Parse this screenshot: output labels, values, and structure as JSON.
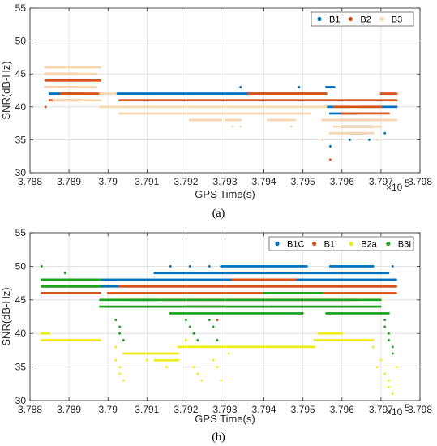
{
  "chart_data": [
    {
      "type": "scatter",
      "panel_label": "(a)",
      "xlabel": "GPS Time(s)",
      "ylabel": "SNR(dB-Hz)",
      "x_exponent_label": "×10",
      "x_exponent_power": "5",
      "xlim": [
        3.788,
        3.798
      ],
      "ylim": [
        30,
        55
      ],
      "xticks": [
        "3.788",
        "3.789",
        "3.79",
        "3.791",
        "3.792",
        "3.793",
        "3.794",
        "3.795",
        "3.796",
        "3.797",
        "3.798"
      ],
      "yticks": [
        "30",
        "35",
        "40",
        "45",
        "50",
        "55"
      ],
      "grid": true,
      "legend_position": "top-right",
      "series": [
        {
          "name": "B1",
          "color": "#0072BD",
          "segments": [
            {
              "x": [
                3.7884,
                3.7888
              ],
              "y": 43
            },
            {
              "x": [
                3.7885,
                3.7891
              ],
              "y": 42
            },
            {
              "x": [
                3.789,
                3.7894
              ],
              "y": 42
            },
            {
              "x": [
                3.789,
                3.7892
              ],
              "y": 43
            },
            {
              "x": [
                3.7902,
                3.7956
              ],
              "y": 42
            },
            {
              "x": [
                3.7956,
                3.7958
              ],
              "y": 43
            },
            {
              "x": [
                3.7956,
                3.7962
              ],
              "y": 40
            },
            {
              "x": [
                3.7957,
                3.7964
              ],
              "y": 39
            },
            {
              "x": [
                3.7959,
                3.7968
              ],
              "y": 38
            },
            {
              "x": [
                3.796,
                3.7968
              ],
              "y": 37
            },
            {
              "x": [
                3.7962,
                3.7966
              ],
              "y": 36
            },
            {
              "x": [
                3.7965,
                3.7974
              ],
              "y": 40
            }
          ],
          "points": [
            {
              "x": 3.7957,
              "y": 34
            },
            {
              "x": 3.7962,
              "y": 35
            },
            {
              "x": 3.7967,
              "y": 35
            },
            {
              "x": 3.7969,
              "y": 38
            },
            {
              "x": 3.7971,
              "y": 36
            },
            {
              "x": 3.7934,
              "y": 43
            },
            {
              "x": 3.7949,
              "y": 43
            }
          ]
        },
        {
          "name": "B2",
          "color": "#D95319",
          "segments": [
            {
              "x": [
                3.7884,
                3.7898
              ],
              "y": 44
            },
            {
              "x": [
                3.7884,
                3.7892
              ],
              "y": 45
            },
            {
              "x": [
                3.7884,
                3.7891
              ],
              "y": 43
            },
            {
              "x": [
                3.7885,
                3.7893
              ],
              "y": 41
            },
            {
              "x": [
                3.7888,
                3.7898
              ],
              "y": 42
            },
            {
              "x": [
                3.7903,
                3.7956
              ],
              "y": 41
            },
            {
              "x": [
                3.7936,
                3.7956
              ],
              "y": 42
            },
            {
              "x": [
                3.7956,
                3.7962
              ],
              "y": 41
            },
            {
              "x": [
                3.7958,
                3.797
              ],
              "y": 40
            },
            {
              "x": [
                3.796,
                3.7972
              ],
              "y": 39
            },
            {
              "x": [
                3.7962,
                3.7974
              ],
              "y": 41
            },
            {
              "x": [
                3.797,
                3.7974
              ],
              "y": 42
            }
          ],
          "points": [
            {
              "x": 3.7884,
              "y": 40
            },
            {
              "x": 3.7957,
              "y": 36
            },
            {
              "x": 3.7957,
              "y": 32
            }
          ]
        },
        {
          "name": "B3",
          "color": "#F7D7AF",
          "segments": [
            {
              "x": [
                3.7884,
                3.7898
              ],
              "y": 46
            },
            {
              "x": [
                3.7884,
                3.7897
              ],
              "y": 45
            },
            {
              "x": [
                3.7884,
                3.7897
              ],
              "y": 43
            },
            {
              "x": [
                3.7886,
                3.7898
              ],
              "y": 41
            },
            {
              "x": [
                3.7898,
                3.7902
              ],
              "y": 42
            },
            {
              "x": [
                3.7898,
                3.7905
              ],
              "y": 40
            },
            {
              "x": [
                3.7903,
                3.7952
              ],
              "y": 39
            },
            {
              "x": [
                3.7904,
                3.7956
              ],
              "y": 40
            },
            {
              "x": [
                3.7921,
                3.7929
              ],
              "y": 38
            },
            {
              "x": [
                3.793,
                3.7934
              ],
              "y": 38
            },
            {
              "x": [
                3.7941,
                3.7948
              ],
              "y": 38
            },
            {
              "x": [
                3.7955,
                3.7974
              ],
              "y": 38
            },
            {
              "x": [
                3.7958,
                3.797
              ],
              "y": 37
            },
            {
              "x": [
                3.7957,
                3.7968
              ],
              "y": 36
            }
          ],
          "points": [
            {
              "x": 3.7932,
              "y": 37
            },
            {
              "x": 3.7934,
              "y": 37
            },
            {
              "x": 3.7947,
              "y": 37
            },
            {
              "x": 3.7955,
              "y": 35
            },
            {
              "x": 3.7969,
              "y": 35
            }
          ]
        }
      ]
    },
    {
      "type": "scatter",
      "panel_label": "(b)",
      "xlabel": "GPS Time(s)",
      "ylabel": "SNR(dB-Hz)",
      "x_exponent_label": "×10",
      "x_exponent_power": "5",
      "xlim": [
        3.788,
        3.798
      ],
      "ylim": [
        30,
        55
      ],
      "xticks": [
        "3.788",
        "3.789",
        "3.79",
        "3.791",
        "3.792",
        "3.793",
        "3.794",
        "3.795",
        "3.796",
        "3.797",
        "3.798"
      ],
      "yticks": [
        "30",
        "35",
        "40",
        "45",
        "50",
        "55"
      ],
      "grid": true,
      "legend_position": "top-right",
      "series": [
        {
          "name": "B1C",
          "color": "#0072BD",
          "segments": [
            {
              "x": [
                3.7883,
                3.7897
              ],
              "y": 48
            },
            {
              "x": [
                3.7883,
                3.7899
              ],
              "y": 47
            },
            {
              "x": [
                3.7883,
                3.7898
              ],
              "y": 46
            },
            {
              "x": [
                3.7898,
                3.7974
              ],
              "y": 48
            },
            {
              "x": [
                3.7898,
                3.7974
              ],
              "y": 47
            },
            {
              "x": [
                3.7912,
                3.7972
              ],
              "y": 49
            },
            {
              "x": [
                3.7929,
                3.7951
              ],
              "y": 50
            },
            {
              "x": [
                3.7957,
                3.7968
              ],
              "y": 50
            }
          ],
          "points": [
            {
              "x": 3.7916,
              "y": 50
            },
            {
              "x": 3.7921,
              "y": 50
            },
            {
              "x": 3.7926,
              "y": 50
            },
            {
              "x": 3.7973,
              "y": 50
            }
          ]
        },
        {
          "name": "B1I",
          "color": "#D95319",
          "segments": [
            {
              "x": [
                3.7883,
                3.7897
              ],
              "y": 47
            },
            {
              "x": [
                3.7883,
                3.7898
              ],
              "y": 46
            },
            {
              "x": [
                3.79,
                3.7974
              ],
              "y": 46
            },
            {
              "x": [
                3.7903,
                3.7974
              ],
              "y": 47
            },
            {
              "x": [
                3.7914,
                3.7964
              ],
              "y": 45
            },
            {
              "x": [
                3.792,
                3.793
              ],
              "y": 44
            },
            {
              "x": [
                3.7932,
                3.7948
              ],
              "y": 48
            }
          ],
          "points": [
            {
              "x": 3.7926,
              "y": 43
            },
            {
              "x": 3.7928,
              "y": 42
            },
            {
              "x": 3.7942,
              "y": 44
            }
          ]
        },
        {
          "name": "B2a",
          "color": "#EDED1C",
          "segments": [
            {
              "x": [
                3.7883,
                3.7898
              ],
              "y": 39
            },
            {
              "x": [
                3.7883,
                3.7885
              ],
              "y": 40
            },
            {
              "x": [
                3.7904,
                3.7918
              ],
              "y": 37
            },
            {
              "x": [
                3.7924,
                3.7953
              ],
              "y": 38
            },
            {
              "x": [
                3.7953,
                3.7968
              ],
              "y": 39
            },
            {
              "x": [
                3.7954,
                3.796
              ],
              "y": 40
            },
            {
              "x": [
                3.7918,
                3.7925
              ],
              "y": 38
            },
            {
              "x": [
                3.7912,
                3.7918
              ],
              "y": 36
            }
          ],
          "points": [
            {
              "x": 3.7902,
              "y": 38
            },
            {
              "x": 3.7902,
              "y": 36
            },
            {
              "x": 3.7903,
              "y": 35
            },
            {
              "x": 3.7903,
              "y": 34
            },
            {
              "x": 3.7904,
              "y": 33
            },
            {
              "x": 3.792,
              "y": 39
            },
            {
              "x": 3.7922,
              "y": 35
            },
            {
              "x": 3.7923,
              "y": 34
            },
            {
              "x": 3.7924,
              "y": 33
            },
            {
              "x": 3.7927,
              "y": 36
            },
            {
              "x": 3.7928,
              "y": 35
            },
            {
              "x": 3.7929,
              "y": 33
            },
            {
              "x": 3.791,
              "y": 36
            },
            {
              "x": 3.7915,
              "y": 35
            },
            {
              "x": 3.7931,
              "y": 37
            },
            {
              "x": 3.797,
              "y": 36
            },
            {
              "x": 3.7971,
              "y": 34
            },
            {
              "x": 3.7972,
              "y": 33
            },
            {
              "x": 3.7972,
              "y": 32
            },
            {
              "x": 3.7973,
              "y": 31
            },
            {
              "x": 3.7974,
              "y": 35
            },
            {
              "x": 3.7968,
              "y": 38
            },
            {
              "x": 3.7969,
              "y": 35
            }
          ]
        },
        {
          "name": "B3I",
          "color": "#1FA31F",
          "segments": [
            {
              "x": [
                3.7883,
                3.7898
              ],
              "y": 48
            },
            {
              "x": [
                3.7883,
                3.7898
              ],
              "y": 47
            },
            {
              "x": [
                3.7898,
                3.7913
              ],
              "y": 45
            },
            {
              "x": [
                3.7898,
                3.797
              ],
              "y": 44
            },
            {
              "x": [
                3.7905,
                3.797
              ],
              "y": 45
            },
            {
              "x": [
                3.7916,
                3.795
              ],
              "y": 43
            },
            {
              "x": [
                3.794,
                3.7955
              ],
              "y": 46
            },
            {
              "x": [
                3.7956,
                3.7972
              ],
              "y": 43
            }
          ],
          "points": [
            {
              "x": 3.7883,
              "y": 50
            },
            {
              "x": 3.7889,
              "y": 49
            },
            {
              "x": 3.7902,
              "y": 42
            },
            {
              "x": 3.7903,
              "y": 41
            },
            {
              "x": 3.7903,
              "y": 40
            },
            {
              "x": 3.7904,
              "y": 39
            },
            {
              "x": 3.792,
              "y": 42
            },
            {
              "x": 3.7921,
              "y": 41
            },
            {
              "x": 3.7922,
              "y": 40
            },
            {
              "x": 3.7923,
              "y": 39
            },
            {
              "x": 3.7926,
              "y": 42
            },
            {
              "x": 3.7927,
              "y": 41
            },
            {
              "x": 3.7928,
              "y": 39
            },
            {
              "x": 3.7971,
              "y": 42
            },
            {
              "x": 3.7971,
              "y": 41
            },
            {
              "x": 3.7972,
              "y": 40
            },
            {
              "x": 3.7972,
              "y": 39
            },
            {
              "x": 3.7973,
              "y": 38
            },
            {
              "x": 3.7973,
              "y": 37
            }
          ]
        }
      ]
    }
  ]
}
